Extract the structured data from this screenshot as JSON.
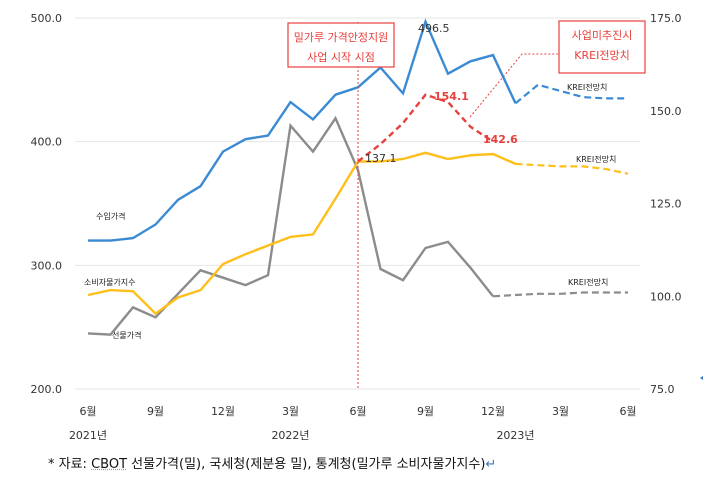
{
  "chart_data": {
    "type": "line",
    "x": [
      "2021-06",
      "2021-07",
      "2021-08",
      "2021-09",
      "2021-10",
      "2021-11",
      "2021-12",
      "2022-01",
      "2022-02",
      "2022-03",
      "2022-04",
      "2022-05",
      "2022-06",
      "2022-07",
      "2022-08",
      "2022-09",
      "2022-10",
      "2022-11",
      "2022-12",
      "2023-01",
      "2023-02",
      "2023-03",
      "2023-04",
      "2023-05",
      "2023-06"
    ],
    "x_tick_labels": [
      "6월",
      "9월",
      "12월",
      "3월",
      "6월",
      "9월",
      "12월",
      "3월",
      "6월"
    ],
    "year_labels": [
      "2021년",
      "2022년",
      "2023년"
    ],
    "y_left": {
      "ticks": [
        "500.0",
        "400.0",
        "300.0",
        "200.0"
      ],
      "ylim": [
        200,
        500
      ]
    },
    "y_right": {
      "ticks": [
        "175.0",
        "150.0",
        "125.0",
        "100.0",
        "75.0"
      ],
      "ylim": [
        75,
        175
      ]
    },
    "series": [
      {
        "name": "수입가격",
        "axis": "left",
        "color": "#3a8ad4",
        "values": [
          320,
          320,
          322,
          333,
          353,
          364,
          392,
          402,
          405,
          432,
          418,
          438,
          444,
          460,
          439,
          497,
          455,
          465,
          470,
          431,
          null,
          null,
          null,
          null,
          null
        ],
        "forecast": [
          null,
          null,
          null,
          null,
          null,
          null,
          null,
          null,
          null,
          null,
          null,
          null,
          null,
          null,
          null,
          null,
          null,
          null,
          null,
          431,
          446,
          441,
          436,
          435,
          435
        ],
        "forecast_label": "KREI전망치",
        "peak_label": "496.5"
      },
      {
        "name": "소비자물가지수",
        "axis": "left",
        "color": "#ffbe1a",
        "values": [
          276,
          280,
          279,
          261,
          274,
          280,
          301,
          309,
          316,
          323,
          325,
          354,
          384,
          384,
          386,
          391,
          386,
          389,
          390,
          382,
          null,
          null,
          null,
          null,
          null
        ],
        "forecast": [
          null,
          null,
          null,
          null,
          null,
          null,
          null,
          null,
          null,
          null,
          null,
          null,
          null,
          null,
          null,
          null,
          null,
          null,
          null,
          382,
          381,
          380,
          380,
          378,
          374
        ],
        "forecast_label": "KREI전망치",
        "value_label": "137.1"
      },
      {
        "name": "선물가격",
        "axis": "left",
        "color": "#8c8c8c",
        "values": [
          245,
          244,
          266,
          258,
          277,
          296,
          290,
          284,
          292,
          413,
          392,
          419,
          377,
          297,
          288,
          314,
          319,
          298,
          275,
          null,
          null,
          null,
          null,
          null,
          null
        ],
        "forecast": [
          null,
          null,
          null,
          null,
          null,
          null,
          null,
          null,
          null,
          null,
          null,
          null,
          null,
          null,
          null,
          null,
          null,
          null,
          275,
          276,
          277,
          277,
          278,
          278,
          278
        ],
        "forecast_label": "KREI전망치"
      },
      {
        "name": "사업미추진시 KREI전망치",
        "axis": "left",
        "color": "#e8403c",
        "values": [
          null,
          null,
          null,
          null,
          null,
          null,
          null,
          null,
          null,
          null,
          null,
          null,
          384,
          398,
          415,
          438,
          432,
          412,
          400,
          null,
          null,
          null,
          null,
          null,
          null
        ],
        "peak_label": "154.1",
        "end_label": "142.6"
      }
    ],
    "annotations": [
      {
        "text": [
          "밀가루 가격안정지원",
          "사업 시작 시점"
        ],
        "x": "2022-06"
      },
      {
        "text": [
          "사업미추진시",
          "KREI전망치"
        ]
      }
    ]
  },
  "note": {
    "prefix": "* 자료: ",
    "source": "CBOT",
    "rest": " 선물가격(밀), 국세청(제분용 밀), 통계청(밀가루 소비자물가지수)",
    "end_mark": "↵"
  }
}
